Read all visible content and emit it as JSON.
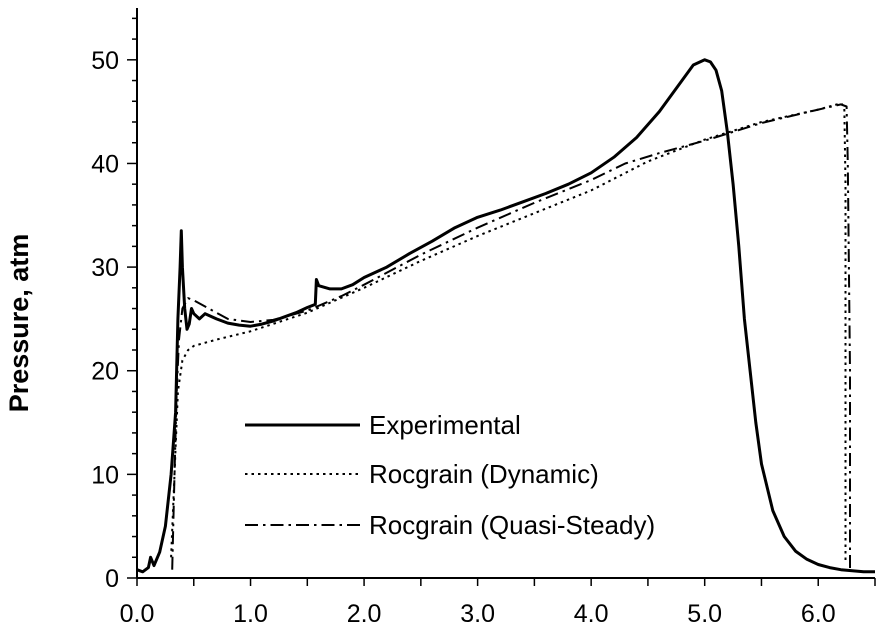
{
  "chart_data": {
    "type": "line",
    "title": "",
    "xlabel": "",
    "ylabel": "Pressure, atm",
    "xlim": [
      0.0,
      6.5
    ],
    "ylim": [
      0,
      55
    ],
    "x_ticks": [
      "0.0",
      "1.0",
      "2.0",
      "3.0",
      "4.0",
      "5.0",
      "6.0"
    ],
    "y_ticks": [
      "0",
      "10",
      "20",
      "30",
      "40",
      "50"
    ],
    "grid": false,
    "legend_position": "lower-center",
    "series": [
      {
        "name": "Experimental",
        "style": "solid",
        "color": "#000000",
        "points": [
          [
            0.0,
            0.8
          ],
          [
            0.05,
            0.6
          ],
          [
            0.1,
            1.0
          ],
          [
            0.12,
            2.0
          ],
          [
            0.15,
            1.2
          ],
          [
            0.2,
            2.5
          ],
          [
            0.25,
            5.0
          ],
          [
            0.3,
            10.0
          ],
          [
            0.34,
            16.0
          ],
          [
            0.36,
            25.0
          ],
          [
            0.38,
            30.0
          ],
          [
            0.39,
            33.5
          ],
          [
            0.4,
            30.0
          ],
          [
            0.42,
            26.0
          ],
          [
            0.44,
            24.0
          ],
          [
            0.46,
            24.5
          ],
          [
            0.48,
            26.0
          ],
          [
            0.5,
            25.5
          ],
          [
            0.55,
            25.0
          ],
          [
            0.6,
            25.5
          ],
          [
            0.7,
            25.0
          ],
          [
            0.8,
            24.6
          ],
          [
            0.9,
            24.4
          ],
          [
            1.0,
            24.3
          ],
          [
            1.1,
            24.5
          ],
          [
            1.2,
            24.8
          ],
          [
            1.3,
            25.2
          ],
          [
            1.4,
            25.6
          ],
          [
            1.5,
            26.1
          ],
          [
            1.57,
            26.4
          ],
          [
            1.58,
            28.8
          ],
          [
            1.6,
            28.2
          ],
          [
            1.7,
            27.9
          ],
          [
            1.8,
            27.9
          ],
          [
            1.9,
            28.3
          ],
          [
            2.0,
            29.0
          ],
          [
            2.2,
            30.0
          ],
          [
            2.4,
            31.3
          ],
          [
            2.6,
            32.5
          ],
          [
            2.8,
            33.8
          ],
          [
            3.0,
            34.8
          ],
          [
            3.2,
            35.5
          ],
          [
            3.4,
            36.3
          ],
          [
            3.6,
            37.1
          ],
          [
            3.8,
            38.0
          ],
          [
            4.0,
            39.1
          ],
          [
            4.2,
            40.6
          ],
          [
            4.4,
            42.5
          ],
          [
            4.6,
            45.0
          ],
          [
            4.8,
            48.0
          ],
          [
            4.9,
            49.5
          ],
          [
            5.0,
            50.0
          ],
          [
            5.05,
            49.8
          ],
          [
            5.1,
            49.0
          ],
          [
            5.15,
            47.0
          ],
          [
            5.2,
            43.0
          ],
          [
            5.25,
            38.0
          ],
          [
            5.3,
            32.0
          ],
          [
            5.35,
            25.0
          ],
          [
            5.4,
            20.0
          ],
          [
            5.45,
            15.0
          ],
          [
            5.5,
            11.0
          ],
          [
            5.6,
            6.5
          ],
          [
            5.7,
            4.0
          ],
          [
            5.8,
            2.6
          ],
          [
            5.9,
            1.8
          ],
          [
            6.0,
            1.3
          ],
          [
            6.1,
            1.0
          ],
          [
            6.2,
            0.8
          ],
          [
            6.3,
            0.7
          ],
          [
            6.4,
            0.6
          ],
          [
            6.5,
            0.6
          ]
        ]
      },
      {
        "name": "Rocgrain (Dynamic)",
        "style": "dotted",
        "color": "#000000",
        "points": [
          [
            0.3,
            2.0
          ],
          [
            0.33,
            10.0
          ],
          [
            0.36,
            18.0
          ],
          [
            0.4,
            21.0
          ],
          [
            0.45,
            22.0
          ],
          [
            0.5,
            22.4
          ],
          [
            0.7,
            23.0
          ],
          [
            1.0,
            23.8
          ],
          [
            1.5,
            25.6
          ],
          [
            2.0,
            28.0
          ],
          [
            2.5,
            30.6
          ],
          [
            3.0,
            33.0
          ],
          [
            3.5,
            35.2
          ],
          [
            4.0,
            37.4
          ],
          [
            4.5,
            40.2
          ],
          [
            5.0,
            42.3
          ],
          [
            5.5,
            44.0
          ],
          [
            6.0,
            45.2
          ],
          [
            6.2,
            45.8
          ],
          [
            6.23,
            45.5
          ],
          [
            6.24,
            38.0
          ],
          [
            6.24,
            1.5
          ]
        ]
      },
      {
        "name": "Rocgrain (Quasi-Steady)",
        "style": "dash-dot",
        "color": "#000000",
        "points": [
          [
            0.31,
            0.8
          ],
          [
            0.33,
            10.0
          ],
          [
            0.35,
            18.0
          ],
          [
            0.37,
            23.0
          ],
          [
            0.4,
            26.0
          ],
          [
            0.45,
            27.0
          ],
          [
            0.5,
            26.8
          ],
          [
            0.6,
            26.2
          ],
          [
            0.8,
            25.0
          ],
          [
            1.0,
            24.7
          ],
          [
            1.2,
            24.9
          ],
          [
            1.5,
            25.8
          ],
          [
            1.8,
            27.2
          ],
          [
            2.0,
            28.3
          ],
          [
            2.5,
            31.2
          ],
          [
            3.0,
            33.8
          ],
          [
            3.5,
            36.2
          ],
          [
            4.0,
            38.4
          ],
          [
            4.3,
            40.0
          ],
          [
            4.6,
            41.0
          ],
          [
            5.0,
            42.2
          ],
          [
            5.5,
            43.9
          ],
          [
            6.0,
            45.2
          ],
          [
            6.2,
            45.7
          ],
          [
            6.25,
            45.5
          ],
          [
            6.26,
            40.0
          ],
          [
            6.27,
            30.0
          ],
          [
            6.28,
            20.0
          ],
          [
            6.28,
            0.5
          ]
        ]
      }
    ]
  }
}
